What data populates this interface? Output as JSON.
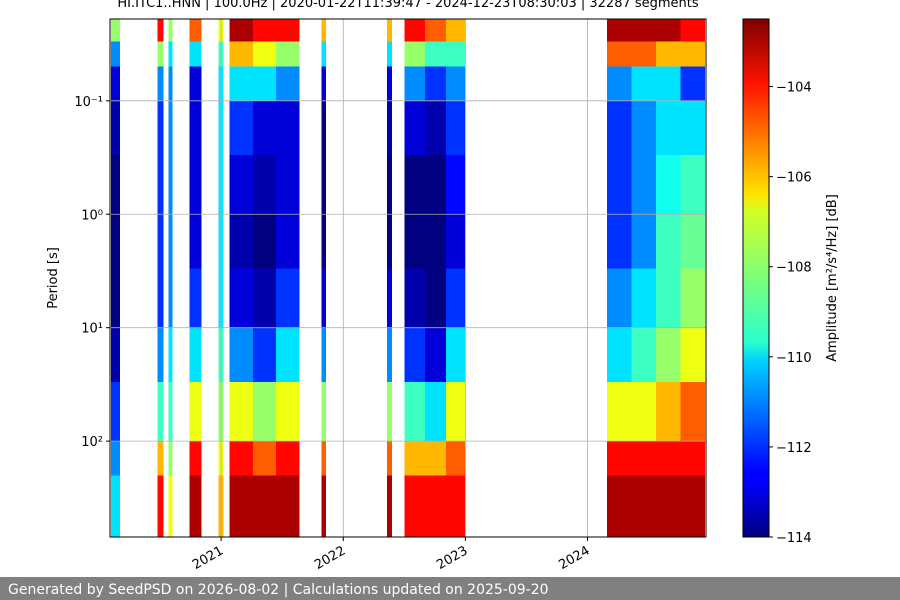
{
  "chart_data": {
    "type": "heatmap",
    "title": "HI.ITC1..HNN | 100.0Hz | 2020-01-22T11:39:47 - 2024-12-23T08:30:03 | 32287 segments",
    "ylabel": "Period [s]",
    "colorbar_label": "Amplitude [m²/s⁴/Hz] [dB]",
    "colormap": "jet",
    "log_y": true,
    "y_inverted": true,
    "grid": true,
    "xlim": [
      2020.09,
      2024.97
    ],
    "xticks": [
      2021,
      2022,
      2023,
      2024
    ],
    "ylim": [
      0.019,
      700
    ],
    "yticks": [
      {
        "value": 0.1,
        "label": "10⁻¹"
      },
      {
        "value": 1,
        "label": "10⁰"
      },
      {
        "value": 10,
        "label": "10¹"
      },
      {
        "value": 100,
        "label": "10²"
      }
    ],
    "clim": [
      -114,
      -102.5
    ],
    "cticks": [
      {
        "value": -104,
        "label": "−104"
      },
      {
        "value": -106,
        "label": "−106"
      },
      {
        "value": -108,
        "label": "−108"
      },
      {
        "value": -110,
        "label": "−110"
      },
      {
        "value": -112,
        "label": "−112"
      },
      {
        "value": -114,
        "label": "−114"
      }
    ],
    "x_edges": [
      2020.1,
      2020.17,
      2020.48,
      2020.53,
      2020.57,
      2020.6,
      2020.74,
      2020.84,
      2020.98,
      2021.02,
      2021.07,
      2021.26,
      2021.45,
      2021.64,
      2021.82,
      2021.86,
      2022.36,
      2022.4,
      2022.5,
      2022.67,
      2022.84,
      2023.0,
      2024.16,
      2024.36,
      2024.56,
      2024.76,
      2024.96
    ],
    "y_edges": [
      0.019,
      0.03,
      0.05,
      0.1,
      0.3,
      1,
      3,
      10,
      30,
      100,
      200,
      700
    ],
    "values": [
      [
        -108,
        -111,
        -113,
        -113.5,
        -114,
        -114,
        -114,
        -113.5,
        -112,
        -111,
        -110
      ],
      null,
      [
        -104,
        -108,
        -111,
        -112,
        -112,
        -112,
        -112,
        -111,
        -109,
        -106,
        -104
      ],
      null,
      [
        -108,
        -110,
        -111,
        -111,
        -111,
        -111,
        -111,
        -110,
        -109,
        -108,
        -107
      ],
      null,
      [
        -105,
        -110,
        -113,
        -113,
        -113,
        -113,
        -112,
        -110,
        -107,
        -104,
        -103
      ],
      null,
      [
        -107,
        -109,
        -110,
        -110,
        -110,
        -110,
        -110,
        -109,
        -108,
        -107,
        -106
      ],
      null,
      [
        -103,
        -106,
        -110,
        -112,
        -113,
        -113.5,
        -113,
        -111,
        -107,
        -104,
        -103
      ],
      [
        -104,
        -107,
        -110,
        -113,
        -113.5,
        -114,
        -113.5,
        -112,
        -108,
        -105,
        -103
      ],
      [
        -104,
        -108,
        -111,
        -113,
        -113,
        -113,
        -112,
        -110,
        -107,
        -104,
        -103
      ],
      null,
      [
        -106,
        -110,
        -113,
        -114,
        -114,
        -114,
        -113,
        -111,
        -108,
        -105,
        -103
      ],
      null,
      [
        -106,
        -110,
        -113,
        -113.5,
        -114,
        -114,
        -113,
        -111,
        -108,
        -105,
        -103
      ],
      null,
      [
        -104,
        -108,
        -111,
        -113,
        -114,
        -114,
        -113.5,
        -112,
        -109,
        -106,
        -104
      ],
      [
        -105,
        -109,
        -112,
        -113.5,
        -114,
        -114,
        -114,
        -113,
        -110,
        -106,
        -104
      ],
      [
        -106,
        -109,
        -111,
        -112,
        -112.5,
        -113,
        -112,
        -110,
        -107,
        -105,
        -104
      ],
      null,
      [
        -103,
        -105,
        -111,
        -112,
        -112,
        -112,
        -111,
        -110,
        -107,
        -104,
        -103
      ],
      [
        -103,
        -105,
        -110,
        -111,
        -111,
        -111,
        -110,
        -109,
        -107,
        -104,
        -103
      ],
      [
        -103,
        -106,
        -110,
        -110,
        -109.5,
        -109,
        -109,
        -108,
        -106,
        -104,
        -103
      ],
      [
        -104,
        -106,
        -112,
        -110,
        -109,
        -108.5,
        -108,
        -107,
        -105,
        -104,
        -103
      ]
    ],
    "footer": "Generated by SeedPSD on 2026-08-02 | Calculations updated on 2025-09-20"
  }
}
